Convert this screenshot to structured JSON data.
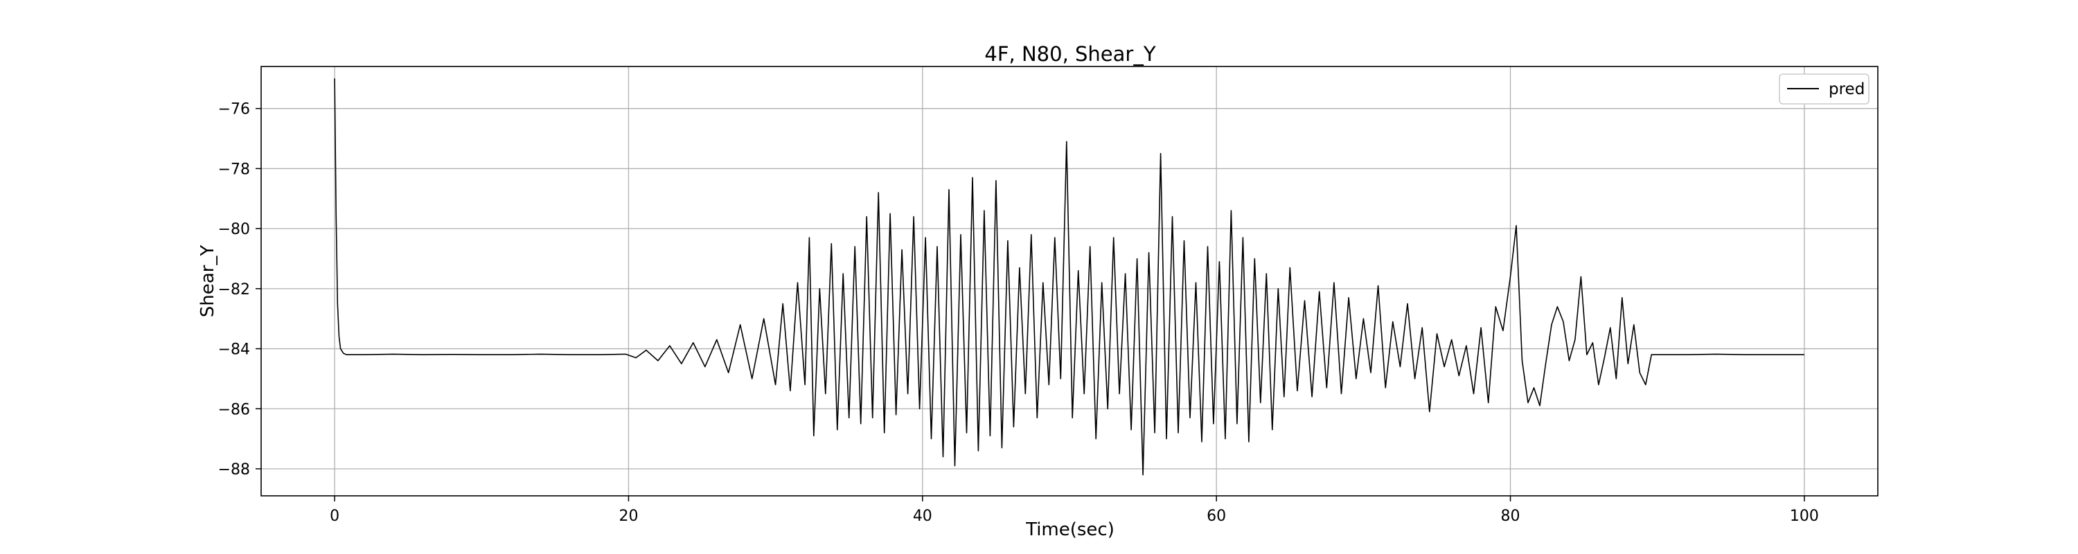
{
  "chart_data": {
    "type": "line",
    "title": "4F, N80, Shear_Y",
    "xlabel": "Time(sec)",
    "ylabel": "Shear_Y",
    "xlim": [
      -5,
      105
    ],
    "ylim": [
      -88.9,
      -74.6
    ],
    "x_ticks": [
      0,
      20,
      40,
      60,
      80,
      100
    ],
    "y_ticks": [
      -76,
      -78,
      -80,
      -82,
      -84,
      -86,
      -88
    ],
    "grid": true,
    "legend_position": "upper-right",
    "line_color": "#000000",
    "series": [
      {
        "name": "pred",
        "x": [
          0,
          0.1,
          0.2,
          0.3,
          0.4,
          0.6,
          0.8,
          1.0,
          2,
          4,
          6,
          8,
          10,
          12,
          14,
          16,
          18,
          19.8,
          20.5,
          21.2,
          22.0,
          22.8,
          23.6,
          24.4,
          25.2,
          26.0,
          26.8,
          27.6,
          28.4,
          29.2,
          30.0,
          30.5,
          31.0,
          31.5,
          32.0,
          32.3,
          32.6,
          33.0,
          33.4,
          33.8,
          34.2,
          34.6,
          35.0,
          35.4,
          35.8,
          36.2,
          36.6,
          37.0,
          37.4,
          37.8,
          38.2,
          38.6,
          39.0,
          39.4,
          39.8,
          40.2,
          40.6,
          41.0,
          41.4,
          41.8,
          42.2,
          42.6,
          43.0,
          43.4,
          43.8,
          44.2,
          44.6,
          45.0,
          45.4,
          45.8,
          46.2,
          46.6,
          47.0,
          47.4,
          47.8,
          48.2,
          48.6,
          49.0,
          49.4,
          49.8,
          50.2,
          50.6,
          51.0,
          51.4,
          51.8,
          52.2,
          52.6,
          53.0,
          53.4,
          53.8,
          54.2,
          54.6,
          55.0,
          55.4,
          55.8,
          56.2,
          56.6,
          57.0,
          57.4,
          57.8,
          58.2,
          58.6,
          59.0,
          59.4,
          59.8,
          60.2,
          60.6,
          61.0,
          61.4,
          61.8,
          62.2,
          62.6,
          63.0,
          63.4,
          63.8,
          64.2,
          64.6,
          65.0,
          65.5,
          66.0,
          66.5,
          67.0,
          67.5,
          68.0,
          68.5,
          69.0,
          69.5,
          70.0,
          70.5,
          71.0,
          71.5,
          72.0,
          72.5,
          73.0,
          73.5,
          74.0,
          74.5,
          75.0,
          75.5,
          76.0,
          76.5,
          77.0,
          77.5,
          78.0,
          78.5,
          79.0,
          79.5,
          80.0,
          80.4,
          80.8,
          81.2,
          81.6,
          82.0,
          82.4,
          82.8,
          83.2,
          83.6,
          84.0,
          84.4,
          84.8,
          85.2,
          85.6,
          86.0,
          86.4,
          86.8,
          87.2,
          87.6,
          88.0,
          88.4,
          88.8,
          89.2,
          89.6,
          90.0,
          92,
          94,
          96,
          98,
          100
        ],
        "y": [
          -75.0,
          -79.5,
          -82.5,
          -83.6,
          -84.0,
          -84.15,
          -84.2,
          -84.2,
          -84.2,
          -84.18,
          -84.2,
          -84.19,
          -84.2,
          -84.2,
          -84.18,
          -84.2,
          -84.2,
          -84.18,
          -84.3,
          -84.05,
          -84.4,
          -83.9,
          -84.5,
          -83.8,
          -84.6,
          -83.7,
          -84.8,
          -83.2,
          -85.0,
          -83.0,
          -85.2,
          -82.5,
          -85.4,
          -81.8,
          -85.2,
          -80.3,
          -86.9,
          -82.0,
          -85.5,
          -80.5,
          -86.7,
          -81.5,
          -86.3,
          -80.6,
          -86.5,
          -79.6,
          -86.3,
          -78.8,
          -86.8,
          -79.5,
          -86.2,
          -80.7,
          -85.5,
          -79.6,
          -86.0,
          -80.3,
          -87.0,
          -80.6,
          -87.6,
          -78.7,
          -87.9,
          -80.2,
          -86.8,
          -78.3,
          -87.4,
          -79.4,
          -86.9,
          -78.4,
          -87.3,
          -80.4,
          -86.6,
          -81.3,
          -85.5,
          -80.2,
          -86.3,
          -81.8,
          -85.2,
          -80.3,
          -85.0,
          -77.1,
          -86.3,
          -81.4,
          -85.5,
          -80.6,
          -87.0,
          -81.8,
          -86.0,
          -80.3,
          -85.5,
          -81.5,
          -86.7,
          -81.0,
          -88.2,
          -80.8,
          -86.8,
          -77.5,
          -87.0,
          -79.6,
          -86.8,
          -80.4,
          -86.3,
          -81.8,
          -87.1,
          -80.6,
          -86.5,
          -81.1,
          -87.0,
          -79.4,
          -86.5,
          -80.3,
          -87.1,
          -81.0,
          -85.8,
          -81.5,
          -86.7,
          -82.0,
          -85.6,
          -81.3,
          -85.4,
          -82.4,
          -85.6,
          -82.1,
          -85.3,
          -81.8,
          -85.5,
          -82.3,
          -85.0,
          -83.0,
          -84.8,
          -81.9,
          -85.3,
          -83.1,
          -84.6,
          -82.5,
          -85.0,
          -83.3,
          -86.1,
          -83.5,
          -84.6,
          -83.7,
          -84.9,
          -83.9,
          -85.5,
          -83.3,
          -85.8,
          -82.6,
          -83.4,
          -81.6,
          -79.9,
          -84.4,
          -85.8,
          -85.3,
          -85.9,
          -84.5,
          -83.2,
          -82.6,
          -83.1,
          -84.4,
          -83.7,
          -81.6,
          -84.2,
          -83.8,
          -85.2,
          -84.3,
          -83.3,
          -85.0,
          -82.3,
          -84.5,
          -83.2,
          -84.8,
          -85.2,
          -84.2,
          -84.2,
          -84.2,
          -84.18,
          -84.2,
          -84.2,
          -84.2
        ]
      }
    ]
  }
}
